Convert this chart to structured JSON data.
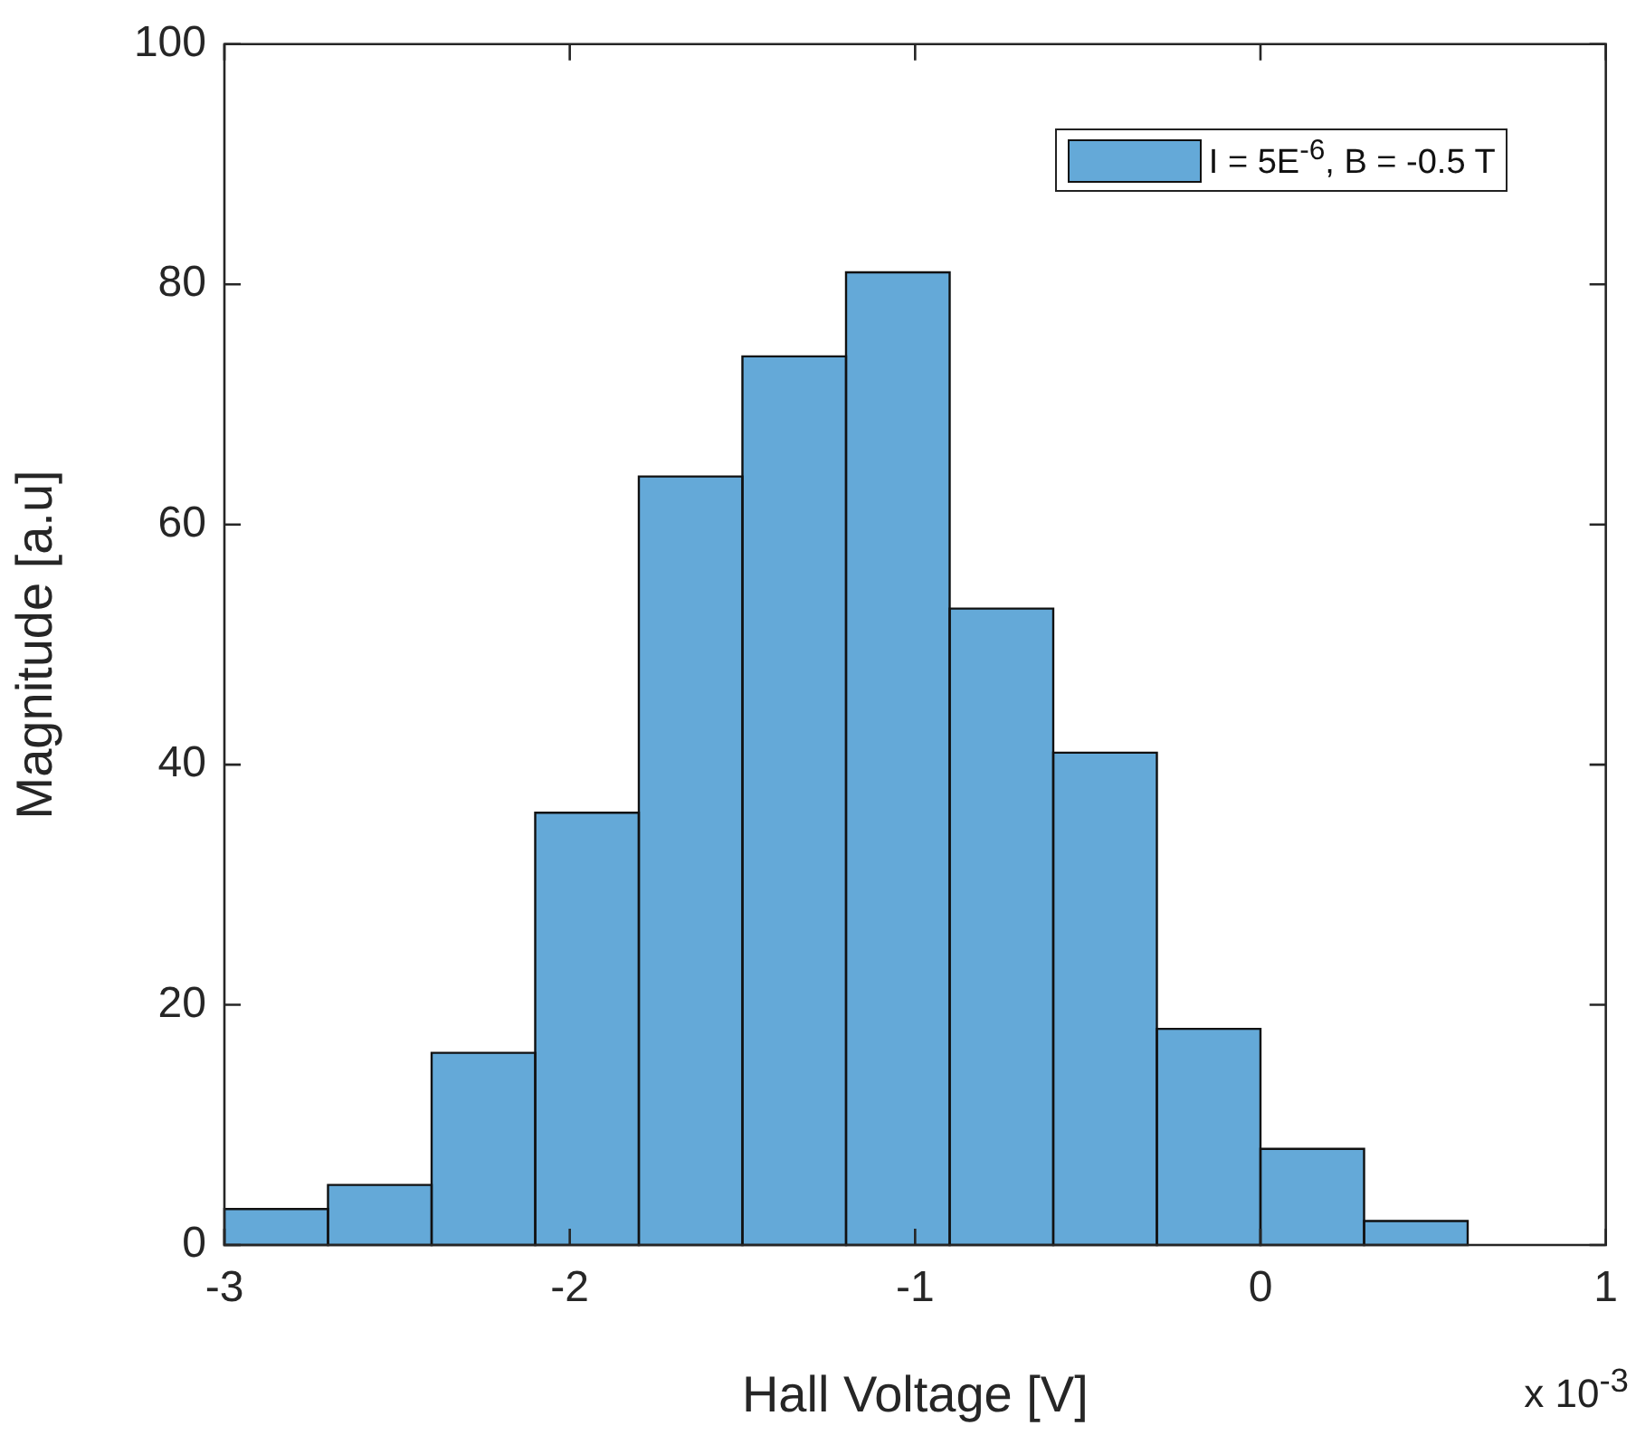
{
  "chart_data": {
    "type": "histogram",
    "xlabel": "Hall Voltage [V]",
    "ylabel": "Magnitude [a.u]",
    "bins": [
      -3,
      -2.7,
      -2.4,
      -2.1,
      -1.8,
      -1.5,
      -1.2,
      -0.9,
      -0.6,
      -0.3,
      0,
      0.3,
      0.6
    ],
    "series": [
      {
        "name": "I = 5E$^{-6}$, B = -0.5 T",
        "color": "#64a9d8",
        "values": [
          3,
          5,
          16,
          36,
          64,
          74,
          81,
          53,
          41,
          18,
          8,
          2
        ]
      }
    ],
    "xlim": [
      -3,
      1
    ],
    "xticks": [
      -3,
      -2,
      -1,
      0,
      1
    ],
    "ylim": [
      0,
      100
    ],
    "yticks": [
      0,
      20,
      40,
      60,
      80,
      100
    ],
    "grid": false,
    "legend": "top right",
    "annotations": [
      "x 10$^{-3}$"
    ]
  }
}
